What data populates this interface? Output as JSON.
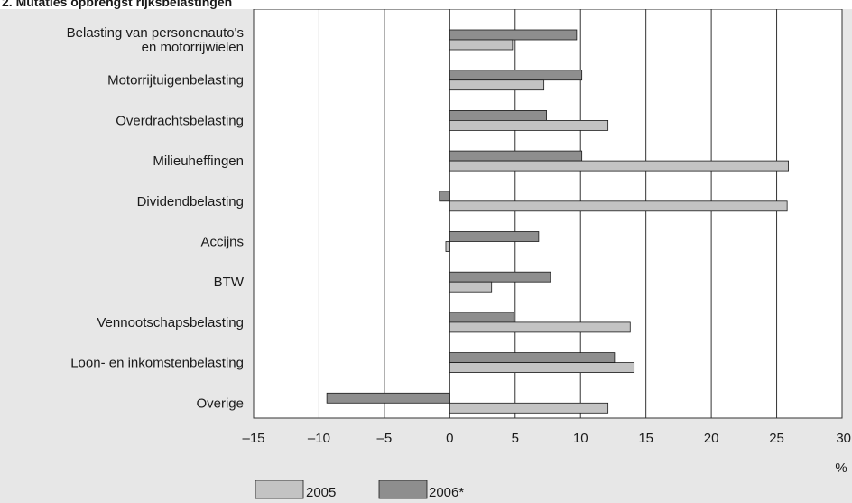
{
  "chart_data": {
    "type": "bar",
    "orientation": "horizontal",
    "title": "2. Mutaties opbrengst rijksbelastingen",
    "categories": [
      [
        "Belasting van personenauto's",
        "en motorrijwielen"
      ],
      [
        "Motorrijtuigenbelasting"
      ],
      [
        "Overdrachtsbelasting"
      ],
      [
        "Milieuheffingen"
      ],
      [
        "Dividendbelasting"
      ],
      [
        "Accijns"
      ],
      [
        "BTW"
      ],
      [
        "Vennootschapsbelasting"
      ],
      [
        "Loon- en inkomstenbelasting"
      ],
      [
        "Overige"
      ]
    ],
    "series": [
      {
        "name": "2005",
        "color": "#c3c3c3",
        "values": [
          4.8,
          7.2,
          12.1,
          25.9,
          25.8,
          -0.3,
          3.2,
          13.8,
          14.1,
          12.1
        ]
      },
      {
        "name": "2006*",
        "color": "#8e8e8e",
        "values": [
          9.7,
          10.1,
          7.4,
          10.1,
          -0.8,
          6.8,
          7.7,
          4.9,
          12.6,
          -9.4
        ]
      }
    ],
    "xlim": [
      -15,
      30
    ],
    "xticks": [
      -15,
      -10,
      -5,
      0,
      5,
      10,
      15,
      20,
      25,
      30
    ],
    "xtick_labels": [
      "–15",
      "–10",
      "–5",
      "0",
      "5",
      "10",
      "15",
      "20",
      "25",
      "30"
    ],
    "xlabel": "%",
    "grid": "vertical",
    "legend_position": "bottom-left"
  }
}
